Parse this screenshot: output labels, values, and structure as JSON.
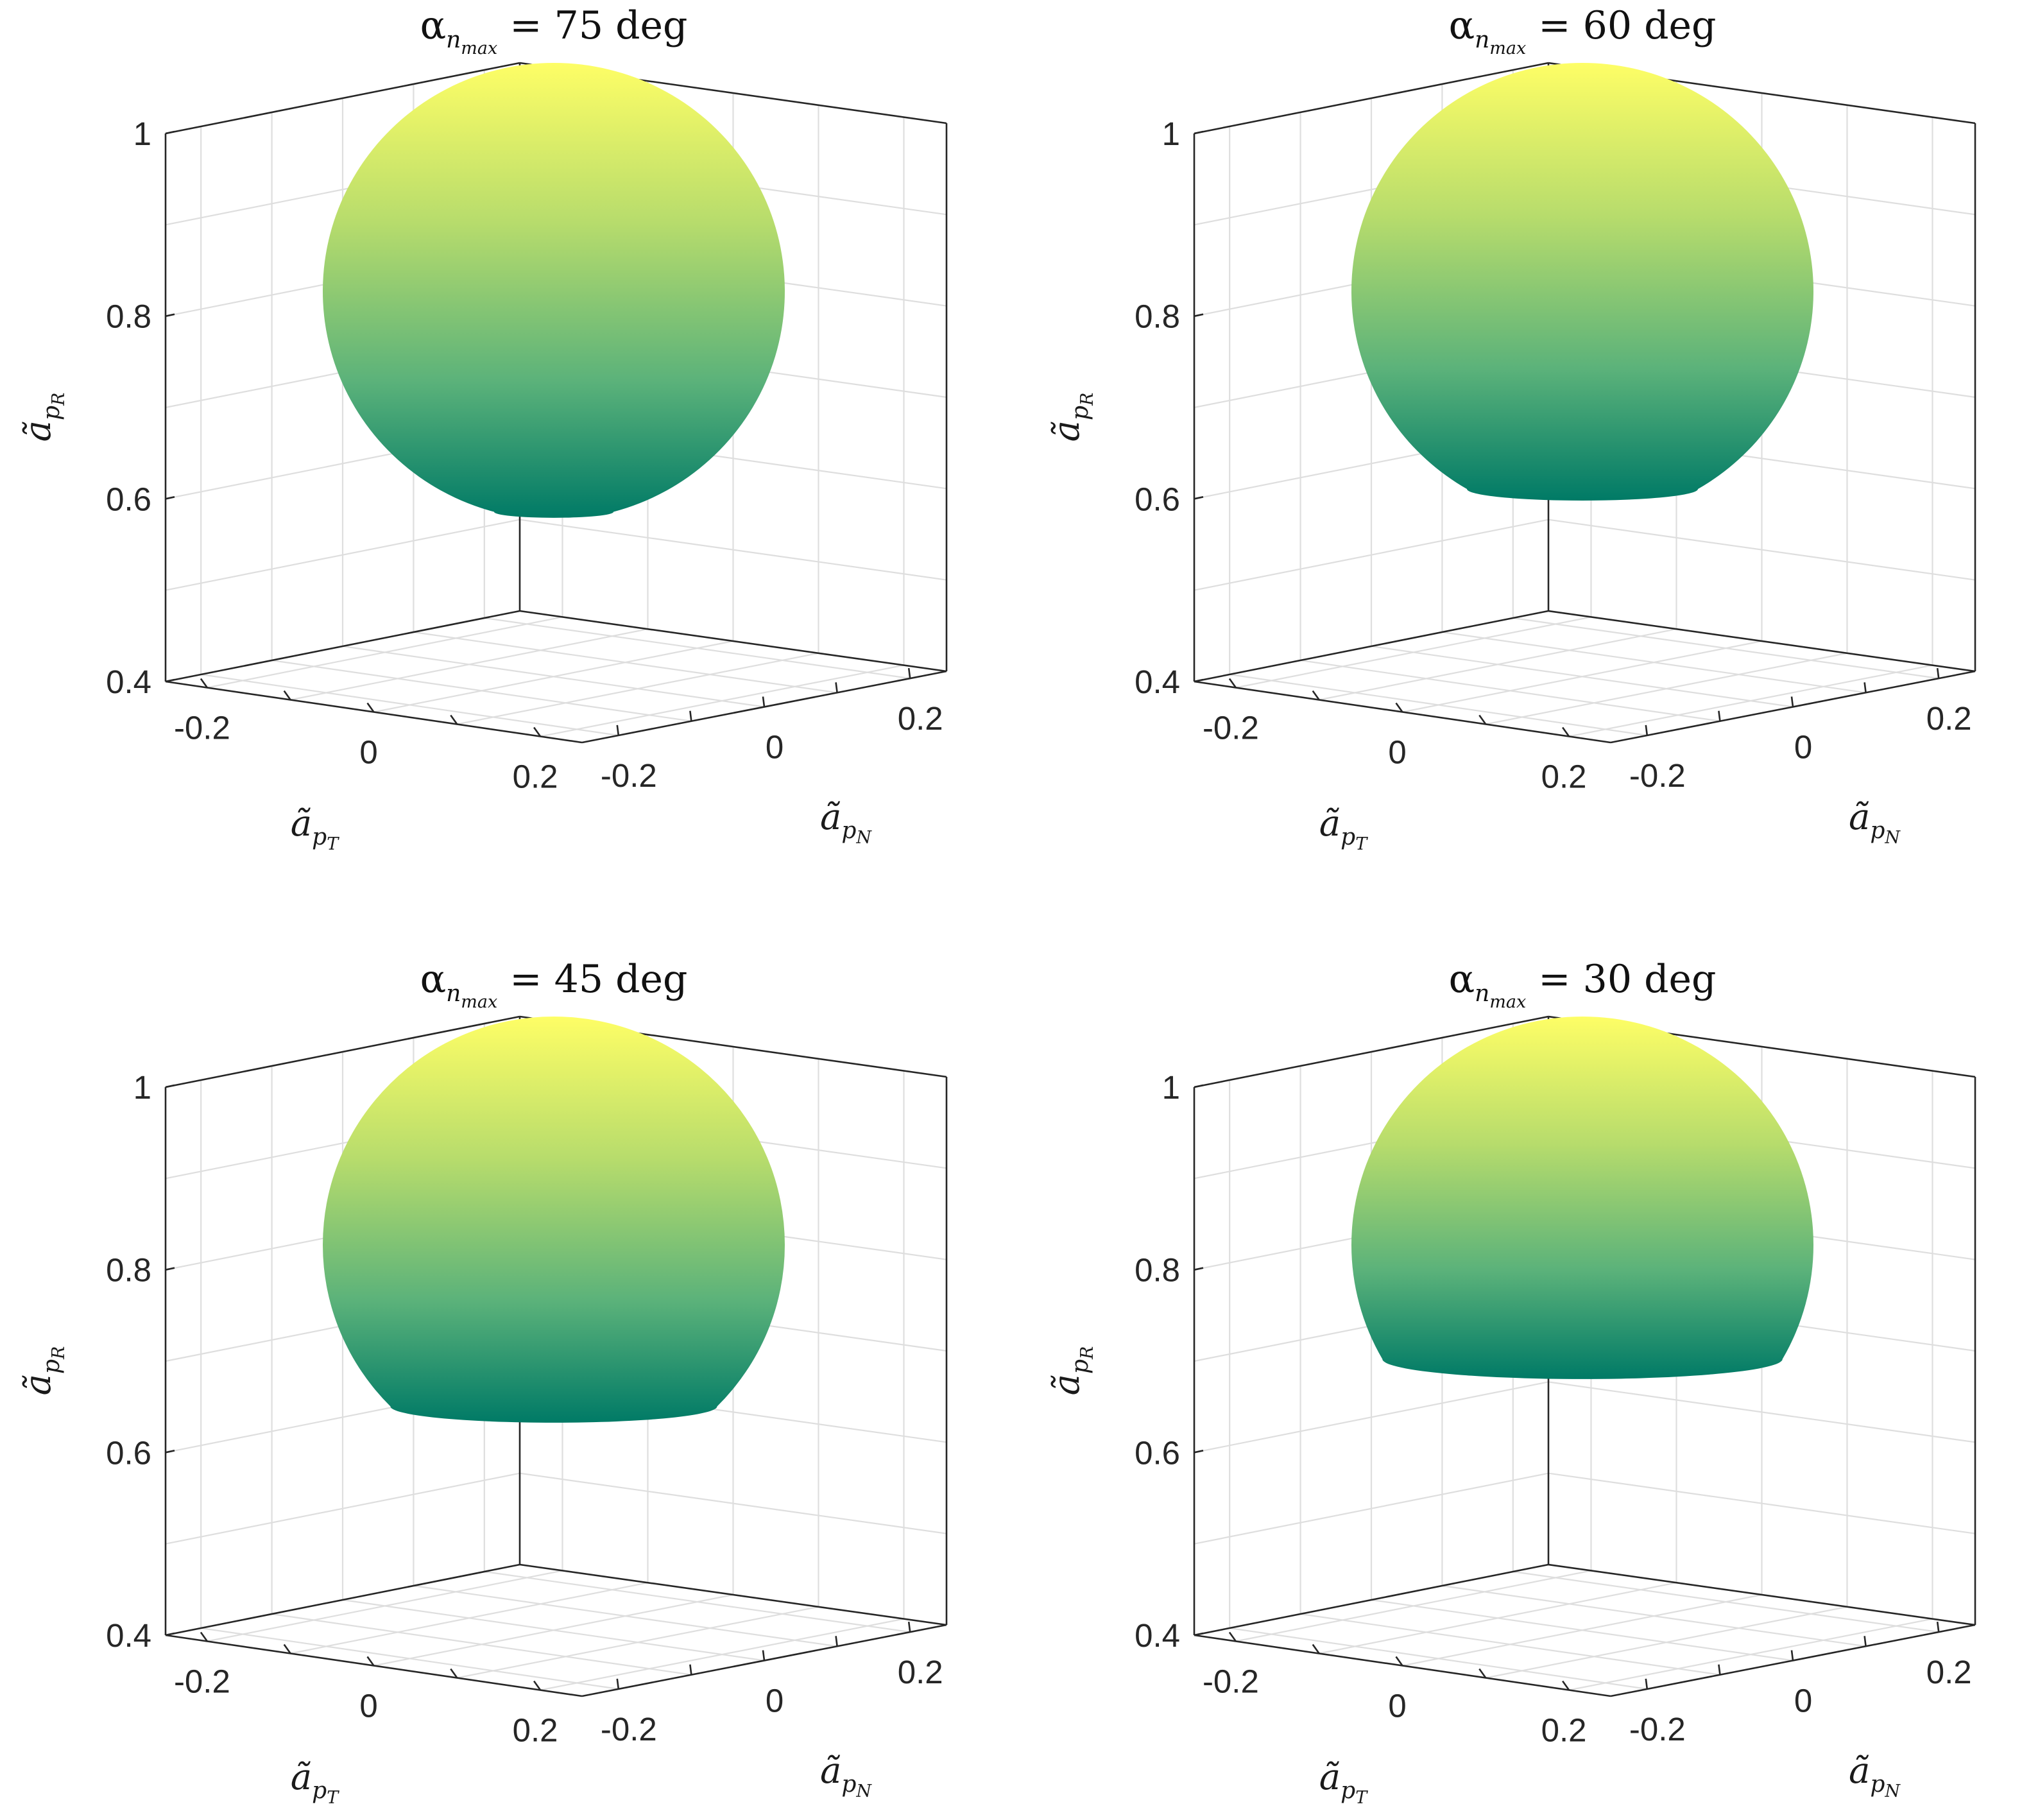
{
  "figure": {
    "ylabel_symbol": "ã",
    "ylabel_sub": "p",
    "ylabel_subsub": "R",
    "xlabel_symbol": "ã",
    "xlabel_sub": "p",
    "xlabel_subsub": "T",
    "nlabel_symbol": "ã",
    "nlabel_sub": "p",
    "nlabel_subsub": "N",
    "title_alpha": "α",
    "title_n": "n",
    "title_max": "max",
    "title_eq": "=",
    "title_unit": "deg",
    "colormap": [
      "#007a66",
      "#5bb27a",
      "#b7dc6c",
      "#fefe66"
    ]
  },
  "chart_data": [
    {
      "type": "surface",
      "title_value": "75",
      "alpha_nmax_deg": 75,
      "sphere": {
        "center": [
          0,
          0,
          0.75
        ],
        "radius": 0.25
      },
      "zlim": [
        0.4,
        1.0
      ],
      "xlim": [
        -0.25,
        0.25
      ],
      "ylim": [
        -0.25,
        0.25
      ],
      "zticks": [
        "1",
        "0.8",
        "0.6",
        "0.4"
      ],
      "xticks": [
        "-0.2",
        "0",
        "0.2"
      ],
      "yticks": [
        "-0.2",
        "0",
        "0.2"
      ],
      "grid": true
    },
    {
      "type": "surface",
      "title_value": "60",
      "alpha_nmax_deg": 60,
      "sphere": {
        "center": [
          0,
          0,
          0.75
        ],
        "radius": 0.25
      },
      "zlim": [
        0.4,
        1.0
      ],
      "xlim": [
        -0.25,
        0.25
      ],
      "ylim": [
        -0.25,
        0.25
      ],
      "zticks": [
        "1",
        "0.8",
        "0.6",
        "0.4"
      ],
      "xticks": [
        "-0.2",
        "0",
        "0.2"
      ],
      "yticks": [
        "-0.2",
        "0",
        "0.2"
      ],
      "grid": true
    },
    {
      "type": "surface",
      "title_value": "45",
      "alpha_nmax_deg": 45,
      "sphere": {
        "center": [
          0,
          0,
          0.75
        ],
        "radius": 0.25
      },
      "zlim": [
        0.4,
        1.0
      ],
      "xlim": [
        -0.25,
        0.25
      ],
      "ylim": [
        -0.25,
        0.25
      ],
      "zticks": [
        "1",
        "0.8",
        "0.6",
        "0.4"
      ],
      "xticks": [
        "-0.2",
        "0",
        "0.2"
      ],
      "yticks": [
        "-0.2",
        "0",
        "0.2"
      ],
      "grid": true
    },
    {
      "type": "surface",
      "title_value": "30",
      "alpha_nmax_deg": 30,
      "sphere": {
        "center": [
          0,
          0,
          0.75
        ],
        "radius": 0.25
      },
      "zlim": [
        0.4,
        1.0
      ],
      "xlim": [
        -0.25,
        0.25
      ],
      "ylim": [
        -0.25,
        0.25
      ],
      "zticks": [
        "1",
        "0.8",
        "0.6",
        "0.4"
      ],
      "xticks": [
        "-0.2",
        "0",
        "0.2"
      ],
      "yticks": [
        "-0.2",
        "0",
        "0.2"
      ],
      "grid": true
    }
  ]
}
